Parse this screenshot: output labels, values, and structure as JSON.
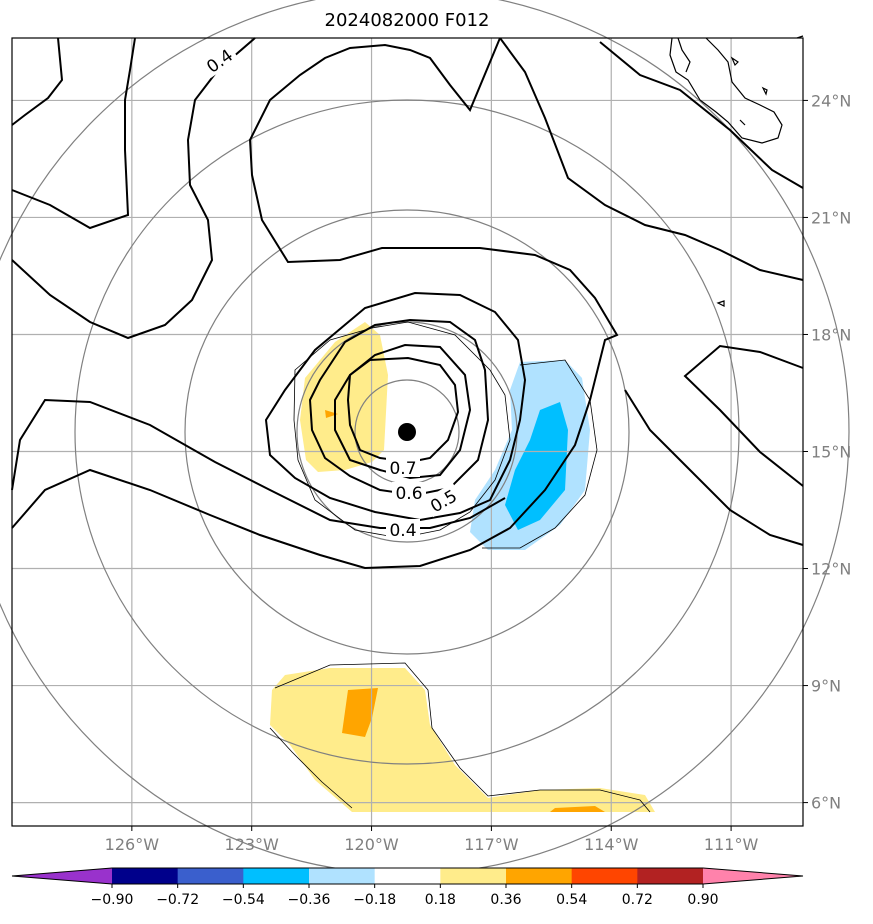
{
  "title": "2024082000 F012",
  "map": {
    "lon_range": [
      -129,
      -109.2
    ],
    "lat_range": [
      5.4,
      25.6
    ],
    "lon_ticks": [
      "126°W",
      "123°W",
      "120°W",
      "117°W",
      "114°W",
      "111°W"
    ],
    "lon_tick_values": [
      -126,
      -123,
      -120,
      -117,
      -114,
      -111
    ],
    "lat_ticks": [
      "24°N",
      "21°N",
      "18°N",
      "15°N",
      "12°N",
      "9°N",
      "6°N"
    ],
    "lat_tick_values": [
      24,
      21,
      18,
      15,
      12,
      9,
      6
    ],
    "grid": true,
    "storm_center": {
      "lon": -118.9,
      "lat": 15.5
    },
    "contour_labels": [
      "0.7",
      "0.6",
      "0.5",
      "0.4",
      "0.4"
    ]
  },
  "colorbar": {
    "tick_labels": [
      "−0.90",
      "−0.72",
      "−0.54",
      "−0.36",
      "−0.18",
      "0.18",
      "0.36",
      "0.54",
      "0.72",
      "0.90"
    ],
    "levels": [
      -0.9,
      -0.72,
      -0.54,
      -0.36,
      -0.18,
      0.18,
      0.36,
      0.54,
      0.72,
      0.9
    ],
    "colors": [
      "#9932cc",
      "#00008b",
      "#3a5fcd",
      "#00bfff",
      "#b0e2ff",
      "#ffffff",
      "#ffec8b",
      "#ffa500",
      "#ff4500",
      "#b22222",
      "#ff82ab"
    ],
    "extend": "both"
  }
}
